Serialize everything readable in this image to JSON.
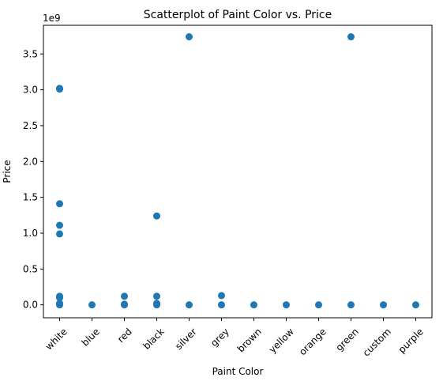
{
  "chart_data": {
    "type": "scatter",
    "title": "Scatterplot of Paint Color vs. Price",
    "xlabel": "Paint Color",
    "ylabel": "Price",
    "y_offset_label": "1e9",
    "categories": [
      "white",
      "blue",
      "red",
      "black",
      "silver",
      "grey",
      "brown",
      "yellow",
      "orange",
      "green",
      "custom",
      "purple"
    ],
    "ylim": [
      -0.18,
      3.9
    ],
    "yticks": [
      0.0,
      0.5,
      1.0,
      1.5,
      2.0,
      2.5,
      3.0,
      3.5
    ],
    "ytick_labels": [
      "0.0",
      "0.5",
      "1.0",
      "1.5",
      "2.0",
      "2.5",
      "3.0",
      "3.5"
    ],
    "y_unit_multiplier": 1000000000,
    "point_color": "#1f77b4",
    "series": [
      {
        "points": [
          {
            "x": "white",
            "y": 3.02
          },
          {
            "x": "white",
            "y": 3.01
          },
          {
            "x": "white",
            "y": 1.41
          },
          {
            "x": "white",
            "y": 1.11
          },
          {
            "x": "white",
            "y": 0.99
          },
          {
            "x": "white",
            "y": 0.12
          },
          {
            "x": "white",
            "y": 0.1
          },
          {
            "x": "white",
            "y": 0.02
          },
          {
            "x": "white",
            "y": 0.0
          },
          {
            "x": "blue",
            "y": 0.0
          },
          {
            "x": "red",
            "y": 0.12
          },
          {
            "x": "red",
            "y": 0.01
          },
          {
            "x": "red",
            "y": 0.0
          },
          {
            "x": "black",
            "y": 1.24
          },
          {
            "x": "black",
            "y": 0.12
          },
          {
            "x": "black",
            "y": 0.02
          },
          {
            "x": "black",
            "y": 0.0
          },
          {
            "x": "silver",
            "y": 3.74
          },
          {
            "x": "silver",
            "y": 0.0
          },
          {
            "x": "grey",
            "y": 0.13
          },
          {
            "x": "grey",
            "y": 0.0
          },
          {
            "x": "brown",
            "y": 0.0
          },
          {
            "x": "yellow",
            "y": 0.0
          },
          {
            "x": "orange",
            "y": 0.0
          },
          {
            "x": "green",
            "y": 3.74
          },
          {
            "x": "green",
            "y": 0.0
          },
          {
            "x": "custom",
            "y": 0.0
          },
          {
            "x": "purple",
            "y": 0.0
          }
        ]
      }
    ],
    "grid": false,
    "legend": false
  }
}
